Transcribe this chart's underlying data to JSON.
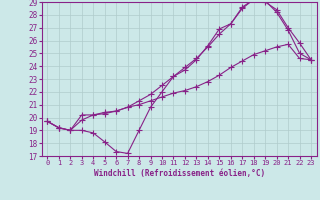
{
  "xlabel": "Windchill (Refroidissement éolien,°C)",
  "xlim": [
    -0.5,
    23.5
  ],
  "ylim": [
    17,
    29
  ],
  "xticks": [
    0,
    1,
    2,
    3,
    4,
    5,
    6,
    7,
    8,
    9,
    10,
    11,
    12,
    13,
    14,
    15,
    16,
    17,
    18,
    19,
    20,
    21,
    22,
    23
  ],
  "yticks": [
    17,
    18,
    19,
    20,
    21,
    22,
    23,
    24,
    25,
    26,
    27,
    28,
    29
  ],
  "bg_color": "#cce8e8",
  "grid_color": "#b0cccc",
  "line_color": "#882288",
  "line1_x": [
    0,
    1,
    2,
    3,
    4,
    5,
    6,
    7,
    8,
    9,
    10,
    11,
    12,
    13,
    14,
    15,
    16,
    17,
    18,
    19,
    20,
    21,
    22,
    23
  ],
  "line1_y": [
    19.7,
    19.2,
    19.0,
    19.0,
    18.8,
    18.1,
    17.35,
    17.2,
    19.0,
    20.8,
    22.0,
    23.2,
    23.7,
    24.5,
    25.6,
    26.9,
    27.3,
    28.5,
    29.2,
    29.1,
    28.2,
    26.8,
    25.0,
    24.5
  ],
  "line2_x": [
    0,
    1,
    2,
    3,
    4,
    5,
    6,
    7,
    8,
    9,
    10,
    11,
    12,
    13,
    14,
    15,
    16,
    17,
    18,
    19,
    20,
    21,
    22,
    23
  ],
  "line2_y": [
    19.7,
    19.2,
    19.0,
    19.8,
    20.2,
    20.4,
    20.5,
    20.8,
    21.0,
    21.3,
    21.6,
    21.9,
    22.1,
    22.4,
    22.8,
    23.3,
    23.9,
    24.4,
    24.9,
    25.2,
    25.5,
    25.7,
    24.6,
    24.5
  ],
  "line3_x": [
    0,
    1,
    2,
    3,
    4,
    5,
    6,
    7,
    8,
    9,
    10,
    11,
    12,
    13,
    14,
    15,
    16,
    17,
    18,
    19,
    20,
    21,
    22,
    23
  ],
  "line3_y": [
    19.7,
    19.2,
    19.0,
    20.2,
    20.2,
    20.3,
    20.5,
    20.8,
    21.3,
    21.8,
    22.5,
    23.2,
    23.9,
    24.6,
    25.5,
    26.5,
    27.3,
    28.6,
    29.2,
    29.0,
    28.4,
    27.0,
    25.8,
    24.5
  ]
}
